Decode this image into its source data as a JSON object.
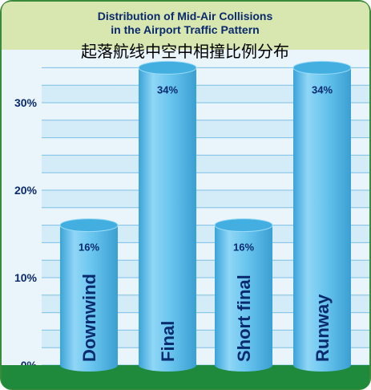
{
  "chart_data": {
    "type": "bar",
    "title_line1": "Distribution of Mid-Air Collisions",
    "title_line2": "in the Airport Traffic Pattern",
    "subtitle": "起落航线中空中相撞比例分布",
    "categories": [
      "Downwind",
      "Final",
      "Short final",
      "Runway"
    ],
    "values": [
      16,
      34,
      16,
      34
    ],
    "data_labels": [
      "16%",
      "34%",
      "16%",
      "34%"
    ],
    "y_ticks": [
      0,
      10,
      20,
      30
    ],
    "y_tick_labels": [
      "0%",
      "10%",
      "20%",
      "30%"
    ],
    "ylim": [
      0,
      34
    ],
    "grid": true,
    "colors": {
      "header_bg": "#d8e6b0",
      "header_border": "#3b8a3a",
      "plot_bg": "#e9f4fb",
      "band_light": "#d4ebf8",
      "ground": "#1f8a3c",
      "bar_body": "#64c4ee",
      "bar_top": "#43afe0",
      "text": "#0a2a6e"
    }
  }
}
